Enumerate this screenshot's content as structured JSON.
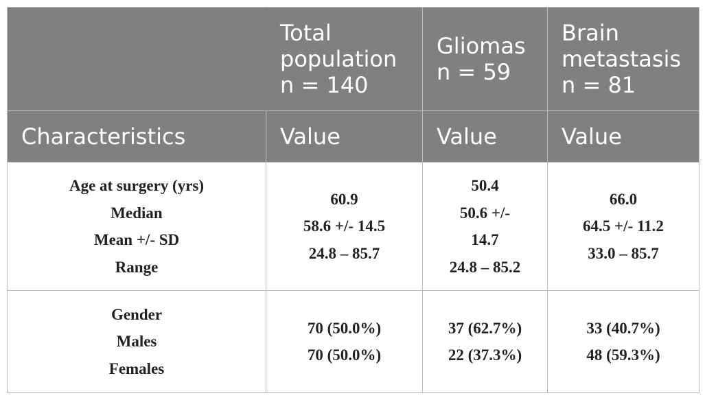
{
  "table": {
    "header_groups": [
      {
        "lines": []
      },
      {
        "lines": [
          "Total",
          "population",
          "n = 140"
        ]
      },
      {
        "lines": [
          "Gliomas",
          "n = 59"
        ]
      },
      {
        "lines": [
          "Brain",
          "metastasis",
          "n = 81"
        ]
      }
    ],
    "column_headers": [
      "Characteristics",
      "Value",
      "Value",
      "Value"
    ],
    "rows": [
      {
        "label_lines": [
          "Age at surgery (yrs)",
          "Median",
          "Mean +/- SD",
          "Range"
        ],
        "cells": [
          [
            "60.9",
            "58.6 +/- 14.5",
            "24.8 – 85.7"
          ],
          [
            "50.4",
            "50.6 +/-",
            "14.7",
            "24.8 – 85.2"
          ],
          [
            "66.0",
            "64.5 +/- 11.2",
            "33.0 – 85.7"
          ]
        ]
      },
      {
        "label_lines": [
          "Gender",
          "Males",
          "Females"
        ],
        "cells": [
          [
            "70 (50.0%)",
            "70 (50.0%)"
          ],
          [
            "37 (62.7%)",
            "22 (37.3%)"
          ],
          [
            "33 (40.7%)",
            "48 (59.3%)"
          ]
        ]
      }
    ]
  }
}
